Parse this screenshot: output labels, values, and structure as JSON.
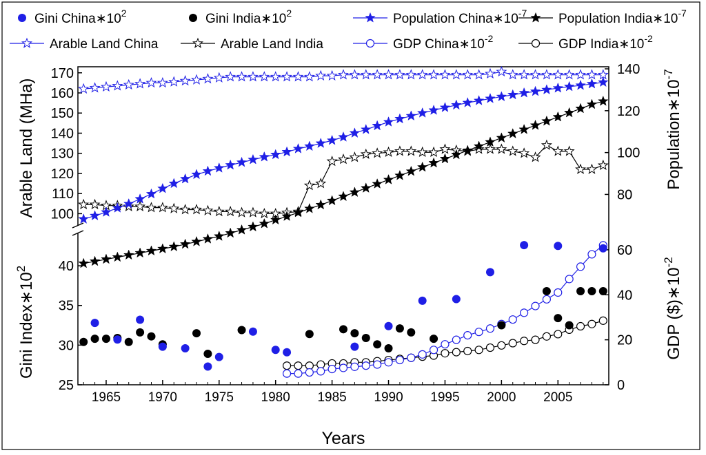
{
  "chart_data": {
    "type": "line",
    "xlabel": "Years",
    "x_ticks": [
      1965,
      1970,
      1975,
      1980,
      1985,
      1990,
      1995,
      2000,
      2005
    ],
    "xlim": [
      1962.5,
      2009.5
    ],
    "colors": {
      "blue": "#1f1fe6",
      "black": "#000000"
    },
    "legend": [
      {
        "key": "gini_china",
        "base": "Gini China",
        "mult": "∗10",
        "exp": "2"
      },
      {
        "key": "gini_india",
        "base": "Gini India",
        "mult": "∗10",
        "exp": "2"
      },
      {
        "key": "pop_china",
        "base": "Population China",
        "mult": "∗10",
        "exp": "-7"
      },
      {
        "key": "pop_india",
        "base": "Population India",
        "mult": "∗10",
        "exp": "-7"
      },
      {
        "key": "land_china",
        "base": "Arable Land China",
        "mult": "",
        "exp": ""
      },
      {
        "key": "land_india",
        "base": "Arable Land India",
        "mult": "",
        "exp": ""
      },
      {
        "key": "gdp_china",
        "base": "GDP China",
        "mult": "∗10",
        "exp": "-2"
      },
      {
        "key": "gdp_india",
        "base": "GDP India",
        "mult": "∗10",
        "exp": "-2"
      }
    ],
    "panels": {
      "top": {
        "left_axis": {
          "label": "Arable Land (MHa)",
          "range": [
            95,
            173
          ],
          "ticks": [
            100,
            110,
            120,
            130,
            140,
            150,
            160,
            170
          ]
        },
        "right_axis": {
          "label_base": "Population",
          "label_mult": "∗10",
          "label_exp": "-7",
          "range": [
            66,
            141
          ],
          "ticks": [
            80,
            100,
            120,
            140
          ]
        }
      },
      "bottom": {
        "left_axis": {
          "label_base": "Gini Index",
          "label_mult": "∗10",
          "label_exp": "2",
          "range": [
            25,
            44
          ],
          "ticks": [
            25,
            30,
            35,
            40
          ]
        },
        "right_axis": {
          "label_base": "GDP ($)",
          "label_mult": "∗10",
          "label_exp": "-2",
          "range": [
            0,
            67
          ],
          "ticks": [
            0,
            20,
            40,
            60
          ]
        }
      }
    },
    "series": {
      "land_china": {
        "name": "Arable Land China",
        "panel": "top",
        "axis": "left",
        "marker": "star-open",
        "color": "blue",
        "x": [
          1963,
          1964,
          1965,
          1966,
          1967,
          1968,
          1969,
          1970,
          1971,
          1972,
          1973,
          1974,
          1975,
          1976,
          1977,
          1978,
          1979,
          1980,
          1981,
          1982,
          1983,
          1984,
          1985,
          1986,
          1987,
          1988,
          1989,
          1990,
          1991,
          1992,
          1993,
          1994,
          1995,
          1996,
          1997,
          1998,
          1999,
          2000,
          2001,
          2002,
          2003,
          2004,
          2005,
          2006,
          2007,
          2008,
          2009
        ],
        "y": [
          162,
          162.5,
          163,
          163.5,
          164,
          164.5,
          165,
          165,
          165.5,
          166,
          166.5,
          167,
          167.5,
          168,
          168,
          168,
          168,
          168,
          168,
          168,
          168,
          168.5,
          168.5,
          169,
          169,
          169,
          169,
          169,
          169,
          169,
          169,
          169,
          169,
          169,
          169,
          169,
          169.5,
          170.5,
          169,
          169,
          169,
          169,
          169,
          169,
          169,
          169,
          169
        ]
      },
      "land_india": {
        "name": "Arable Land India",
        "panel": "top",
        "axis": "left",
        "marker": "star-open",
        "color": "black",
        "x": [
          1963,
          1964,
          1965,
          1966,
          1967,
          1968,
          1969,
          1970,
          1971,
          1972,
          1973,
          1974,
          1975,
          1976,
          1977,
          1978,
          1979,
          1980,
          1981,
          1982,
          1983,
          1984,
          1985,
          1986,
          1987,
          1988,
          1989,
          1990,
          1991,
          1992,
          1993,
          1994,
          1995,
          1996,
          1997,
          1998,
          1999,
          2000,
          2001,
          2002,
          2003,
          2004,
          2005,
          2006,
          2007,
          2008,
          2009
        ],
        "y": [
          104.5,
          104.5,
          104,
          104,
          103.5,
          103.5,
          103,
          103,
          102.5,
          102,
          102,
          101.5,
          101,
          101,
          100.5,
          100.5,
          100,
          100,
          100.5,
          101,
          114,
          115,
          126,
          127,
          128,
          129.5,
          130,
          130.5,
          131,
          131,
          130.5,
          130.5,
          132,
          131.5,
          131,
          132,
          132,
          132,
          131,
          130,
          128,
          134,
          131,
          131,
          122,
          122,
          124
        ]
      },
      "pop_china": {
        "name": "Population China",
        "panel": "top",
        "axis": "right",
        "marker": "star-filled",
        "color": "blue",
        "x": [
          1963,
          1964,
          1965,
          1966,
          1967,
          1968,
          1969,
          1970,
          1971,
          1972,
          1973,
          1974,
          1975,
          1976,
          1977,
          1978,
          1979,
          1980,
          1981,
          1982,
          1983,
          1984,
          1985,
          1986,
          1987,
          1988,
          1989,
          1990,
          1991,
          1992,
          1993,
          1994,
          1995,
          1996,
          1997,
          1998,
          1999,
          2000,
          2001,
          2002,
          2003,
          2004,
          2005,
          2006,
          2007,
          2008,
          2009
        ],
        "y": [
          68.2,
          69.8,
          71.5,
          73.5,
          75.5,
          77.8,
          80.2,
          82.8,
          85.2,
          87.4,
          89.5,
          91.1,
          92.6,
          94,
          95.3,
          96.6,
          97.9,
          99,
          100.3,
          101.8,
          103,
          104.4,
          105.8,
          107.4,
          109.3,
          111,
          112.8,
          114.6,
          116.1,
          117.5,
          118.9,
          120.2,
          121.5,
          122.7,
          123.8,
          124.8,
          125.8,
          126.7,
          127.6,
          128.5,
          129.2,
          130,
          130.8,
          131.5,
          132.1,
          132.8,
          133.6
        ]
      },
      "pop_india": {
        "name": "Population India",
        "panel": "top",
        "axis": "right",
        "marker": "star-filled",
        "color": "black",
        "x": [
          1963,
          1964,
          1965,
          1966,
          1967,
          1968,
          1969,
          1970,
          1971,
          1972,
          1973,
          1974,
          1975,
          1976,
          1977,
          1978,
          1979,
          1980,
          1981,
          1982,
          1983,
          1984,
          1985,
          1986,
          1987,
          1988,
          1989,
          1990,
          1991,
          1992,
          1993,
          1994,
          1995,
          1996,
          1997,
          1998,
          1999,
          2000,
          2001,
          2002,
          2003,
          2004,
          2005,
          2006,
          2007,
          2008,
          2009
        ],
        "y": [
          47,
          48,
          49,
          50,
          51,
          52,
          53,
          54,
          55,
          56.2,
          57.4,
          58.7,
          60,
          61.5,
          63,
          64.5,
          66,
          67.8,
          69.5,
          71.3,
          73.2,
          75,
          77,
          79,
          81,
          83,
          85,
          87,
          89,
          91,
          93,
          95,
          97,
          99,
          101,
          103,
          105,
          107,
          109,
          111,
          113,
          115,
          117,
          119,
          121,
          123,
          124.5
        ]
      },
      "gini_china": {
        "name": "Gini China",
        "panel": "bottom",
        "axis": "left",
        "marker": "dot",
        "color": "blue",
        "x": [
          1964,
          1966,
          1968,
          1970,
          1972,
          1974,
          1975,
          1978,
          1980,
          1981,
          1987,
          1990,
          1993,
          1996,
          1999,
          2002,
          2005,
          2009
        ],
        "y": [
          32.8,
          30.7,
          33.2,
          29.8,
          29.6,
          27.3,
          28.5,
          31.7,
          29.4,
          29.1,
          29.8,
          32.4,
          35.6,
          35.8,
          39.2,
          42.6,
          42.5,
          42.2
        ]
      },
      "gini_india": {
        "name": "Gini India",
        "panel": "bottom",
        "axis": "left",
        "marker": "dot",
        "color": "black",
        "x": [
          1963,
          1964,
          1965,
          1966,
          1967,
          1968,
          1969,
          1970,
          1973,
          1974,
          1977,
          1983,
          1986,
          1987,
          1988,
          1989,
          1990,
          1991,
          1992,
          1994,
          2000,
          2004,
          2005,
          2006,
          2007,
          2008,
          2009
        ],
        "y": [
          30.4,
          30.8,
          30.8,
          30.9,
          30.4,
          31.6,
          31.1,
          30.1,
          31.5,
          28.9,
          31.9,
          31.4,
          32,
          31.5,
          30.9,
          30.1,
          29.6,
          32.1,
          31.6,
          30.8,
          32.5,
          36.8,
          33.4,
          32.5,
          36.8,
          36.8,
          36.8
        ]
      },
      "gdp_china": {
        "name": "GDP China",
        "panel": "bottom",
        "axis": "right",
        "marker": "circle-open",
        "color": "blue",
        "x": [
          1981,
          1982,
          1983,
          1984,
          1985,
          1986,
          1987,
          1988,
          1989,
          1990,
          1991,
          1992,
          1993,
          1994,
          1995,
          1996,
          1997,
          1998,
          1999,
          2000,
          2001,
          2002,
          2003,
          2004,
          2005,
          2006,
          2007,
          2008,
          2009
        ],
        "y": [
          5,
          5,
          5.5,
          6,
          7,
          7.5,
          8,
          8.5,
          9,
          10,
          11,
          12,
          13.5,
          15.5,
          18,
          20,
          22,
          23.5,
          25,
          27,
          29,
          32,
          35,
          38,
          41,
          47,
          52.5,
          58,
          62
        ]
      },
      "gdp_india": {
        "name": "GDP India",
        "panel": "bottom",
        "axis": "right",
        "marker": "circle-open",
        "color": "black",
        "x": [
          1981,
          1982,
          1983,
          1984,
          1985,
          1986,
          1987,
          1988,
          1989,
          1990,
          1991,
          1992,
          1993,
          1994,
          1995,
          1996,
          1997,
          1998,
          1999,
          2000,
          2001,
          2002,
          2003,
          2004,
          2005,
          2006,
          2007,
          2008,
          2009
        ],
        "y": [
          8.5,
          8.5,
          8.5,
          9,
          9.5,
          9.5,
          10,
          10,
          10.5,
          11,
          11.5,
          12,
          12.5,
          13,
          14,
          14.5,
          15,
          15.5,
          16.5,
          17.5,
          18.5,
          19.5,
          20,
          21.5,
          22.5,
          24.5,
          26,
          27,
          28.5
        ]
      }
    }
  }
}
